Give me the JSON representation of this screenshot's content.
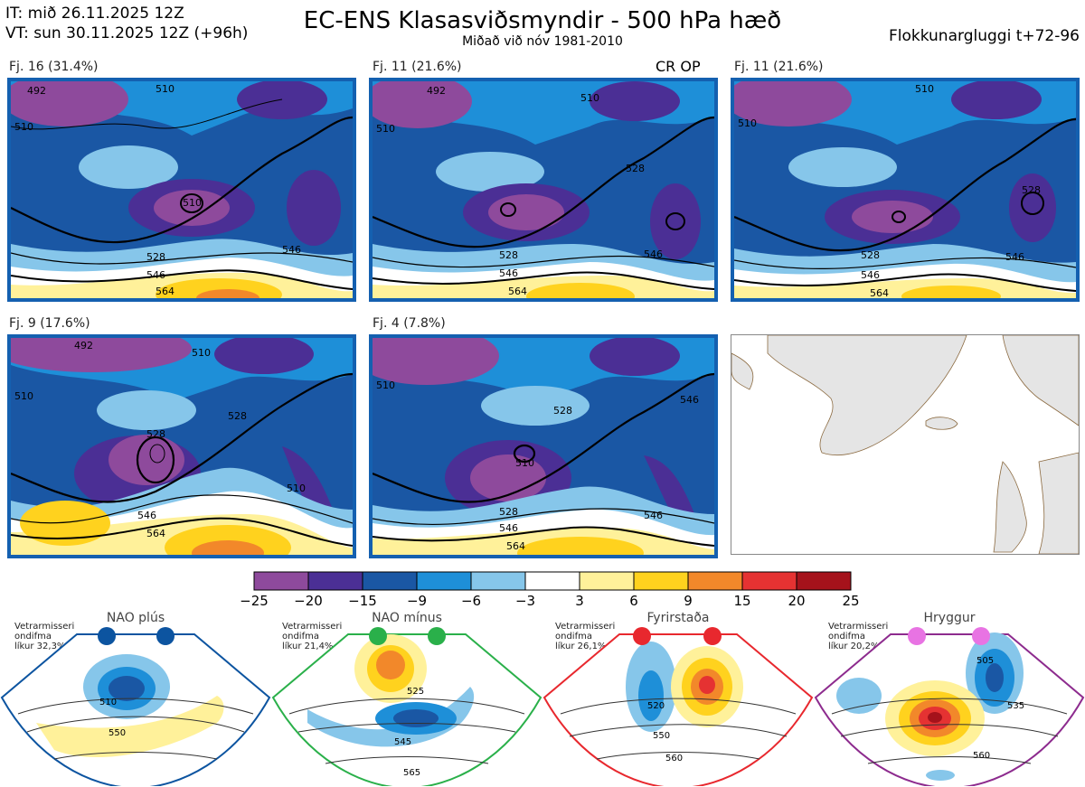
{
  "header": {
    "issue_time": "IT: mið 26.11.2025 12Z",
    "valid_time": "VT: sun 30.11.2025 12Z  (+96h)",
    "title": "EC-ENS Klasasviðsmyndir - 500 hPa hæð",
    "subtitle": "Miðað við nóv 1981-2010",
    "window": "Flokkunargluggi t+72-96"
  },
  "panels": [
    {
      "label": "Fj. 16 (31.4%)",
      "contours": [
        "492",
        "510",
        "510",
        "510",
        "528",
        "546",
        "564",
        "546"
      ]
    },
    {
      "label": "Fj. 11 (21.6%)",
      "tag": "CR OP",
      "contours": [
        "492",
        "510",
        "510",
        "528",
        "528",
        "546",
        "564",
        "546"
      ]
    },
    {
      "label": "Fj. 11 (21.6%)",
      "contours": [
        "510",
        "510",
        "528",
        "528",
        "546",
        "564",
        "546"
      ]
    },
    {
      "label": "Fj. 9 (17.6%)",
      "contours": [
        "492",
        "510",
        "510",
        "528",
        "528",
        "546",
        "564",
        "510"
      ]
    },
    {
      "label": "Fj. 4 (7.8%)",
      "contours": [
        "510",
        "528",
        "510",
        "528",
        "546",
        "564",
        "546",
        "546"
      ]
    }
  ],
  "colorbar": {
    "ticks": [
      "−25",
      "−20",
      "−15",
      "−9",
      "−6",
      "−3",
      "3",
      "6",
      "9",
      "15",
      "20",
      "25"
    ],
    "colors": [
      "#8e4a9c",
      "#4b2f95",
      "#1a57a4",
      "#1e8fd8",
      "#86c6ea",
      "#ffffff",
      "#fff19a",
      "#ffd21e",
      "#f2882a",
      "#e53232",
      "#a5121b"
    ]
  },
  "regimes": [
    {
      "name": "NAO plús",
      "stat_lines": [
        "Vetrarmisseri",
        "ondifma",
        "líkur 32,3%"
      ],
      "color": "#0c54a0",
      "contours": [
        "510",
        "550"
      ]
    },
    {
      "name": "NAO mínus",
      "stat_lines": [
        "Vetrarmisseri",
        "ondifma",
        "líkur 21,4%"
      ],
      "color": "#2ab04a",
      "contours": [
        "525",
        "545",
        "565"
      ]
    },
    {
      "name": "Fyrirstaða",
      "stat_lines": [
        "Vetrarmisseri",
        "ondifma",
        "líkur 26,1%"
      ],
      "color": "#e8282e",
      "contours": [
        "520",
        "550",
        "560"
      ]
    },
    {
      "name": "Hryggur",
      "stat_lines": [
        "Vetrarmisseri",
        "ondifma",
        "líkur 20,2%"
      ],
      "color": "#e873e3",
      "contours": [
        "505",
        "535",
        "560"
      ]
    }
  ]
}
